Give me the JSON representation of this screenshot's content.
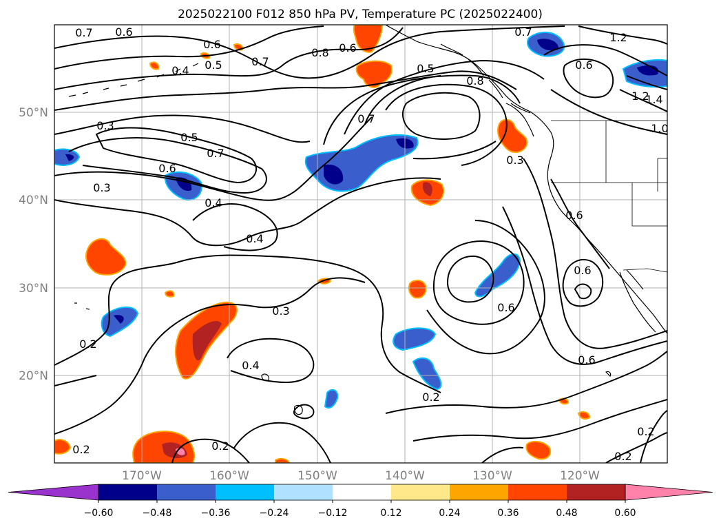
{
  "title": "2025022100 F012 850 hPa PV, Temperature PC (2025022400)",
  "map": {
    "longitude_labels": [
      "170°W",
      "160°W",
      "150°W",
      "140°W",
      "130°W",
      "120°W"
    ],
    "latitude_labels": [
      "50°N",
      "40°N",
      "30°N",
      "20°N"
    ],
    "gridlines": true
  },
  "colorbar": {
    "ticks": [
      "−0.60",
      "−0.48",
      "−0.36",
      "−0.24",
      "−0.12",
      "0.12",
      "0.24",
      "0.36",
      "0.48",
      "0.60"
    ],
    "colors": [
      "#9a32cd",
      "#00008b",
      "#3a5fcd",
      "#00bfff",
      "#b0e2ff",
      "#ffffff",
      "#ffe88a",
      "#ffa500",
      "#ff4500",
      "#b22222",
      "#ff82ab"
    ],
    "extend": "both"
  },
  "contour_labels": [
    "0.7",
    "0.6",
    "0.6",
    "0.5",
    "0.7",
    "0.8",
    "0.6",
    "0.4",
    "0.5",
    "0.8",
    "0.7",
    "1.2",
    "0.6",
    "1.2",
    "1.4",
    "1.0",
    "0.3",
    "0.5",
    "0.7",
    "0.6",
    "0.3",
    "0.4",
    "0.7",
    "0.3",
    "0.6",
    "0.4",
    "0.6",
    "0.6",
    "0.3",
    "0.2",
    "0.4",
    "0.6",
    "0.2",
    "0.2",
    "0.2",
    "0.2",
    "0.2"
  ],
  "colors": {
    "land_outline": "#000000",
    "contour": "#000000",
    "grid": "#b0b0b0"
  }
}
